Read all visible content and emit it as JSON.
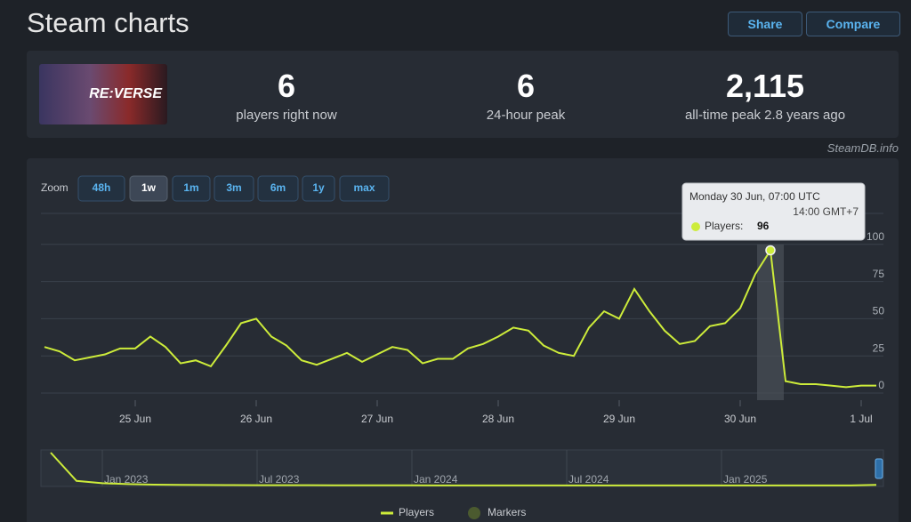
{
  "header": {
    "title": "Steam charts",
    "buttons": [
      "Share",
      "Compare"
    ]
  },
  "game": {
    "logo_text": "RE:VERSE"
  },
  "stats": [
    {
      "value": "6",
      "label": "players right now"
    },
    {
      "value": "6",
      "label": "24-hour peak"
    },
    {
      "value": "2,115",
      "label": "all-time peak 2.8 years ago"
    }
  ],
  "credit": "SteamDB.info",
  "zoom": {
    "label": "Zoom",
    "options": [
      "48h",
      "1w",
      "1m",
      "3m",
      "6m",
      "1y",
      "max"
    ],
    "active": 1
  },
  "tooltip": {
    "title": "Monday 30 Jun, 07:00 UTC",
    "subtitle": "14:00 GMT+7",
    "label": "Players:",
    "index": 48
  },
  "chart_data": [
    {
      "type": "line",
      "categories": [
        null,
        null,
        null,
        null,
        null,
        null,
        "25 Jun",
        null,
        null,
        null,
        null,
        null,
        null,
        null,
        "26 Jun",
        null,
        null,
        null,
        null,
        null,
        null,
        null,
        "27 Jun",
        null,
        null,
        null,
        null,
        null,
        null,
        null,
        "28 Jun",
        null,
        null,
        null,
        null,
        null,
        null,
        null,
        "29 Jun",
        null,
        null,
        null,
        null,
        null,
        null,
        null,
        "30 Jun",
        null,
        null,
        null,
        null,
        null,
        null,
        null,
        "1 Jul",
        null
      ],
      "series": [
        {
          "name": "Players",
          "color": "#cdec3a",
          "values": [
            31,
            28,
            22,
            24,
            26,
            30,
            30,
            38,
            31,
            20,
            22,
            18,
            32,
            47,
            50,
            38,
            32,
            22,
            19,
            23,
            27,
            21,
            26,
            31,
            29,
            20,
            23,
            23,
            30,
            33,
            38,
            44,
            42,
            32,
            27,
            25,
            44,
            55,
            50,
            70,
            55,
            42,
            33,
            35,
            45,
            47,
            57,
            80,
            96,
            8,
            6,
            6,
            5,
            4,
            5,
            5
          ]
        }
      ],
      "markers": {
        "name": "Markers",
        "color": "#4b5a2f"
      },
      "ylim": [
        0,
        125
      ],
      "yticks": [
        0,
        25,
        50,
        75,
        100
      ],
      "grid": true
    },
    {
      "type": "line",
      "categories": [
        null,
        null,
        "Jan 2023",
        null,
        null,
        null,
        null,
        null,
        "Jul 2023",
        null,
        null,
        null,
        null,
        null,
        "Jan 2024",
        null,
        null,
        null,
        null,
        null,
        "Jul 2024",
        null,
        null,
        null,
        null,
        null,
        "Jan 2025",
        null,
        null,
        null,
        null,
        null,
        null
      ],
      "series": [
        {
          "name": "Players",
          "color": "#cdec3a",
          "values": [
            2115,
            300,
            150,
            90,
            60,
            45,
            35,
            30,
            25,
            20,
            18,
            15,
            14,
            12,
            12,
            10,
            10,
            9,
            9,
            8,
            8,
            8,
            7,
            7,
            7,
            6,
            6,
            6,
            6,
            6,
            6,
            6,
            40
          ]
        }
      ]
    }
  ]
}
